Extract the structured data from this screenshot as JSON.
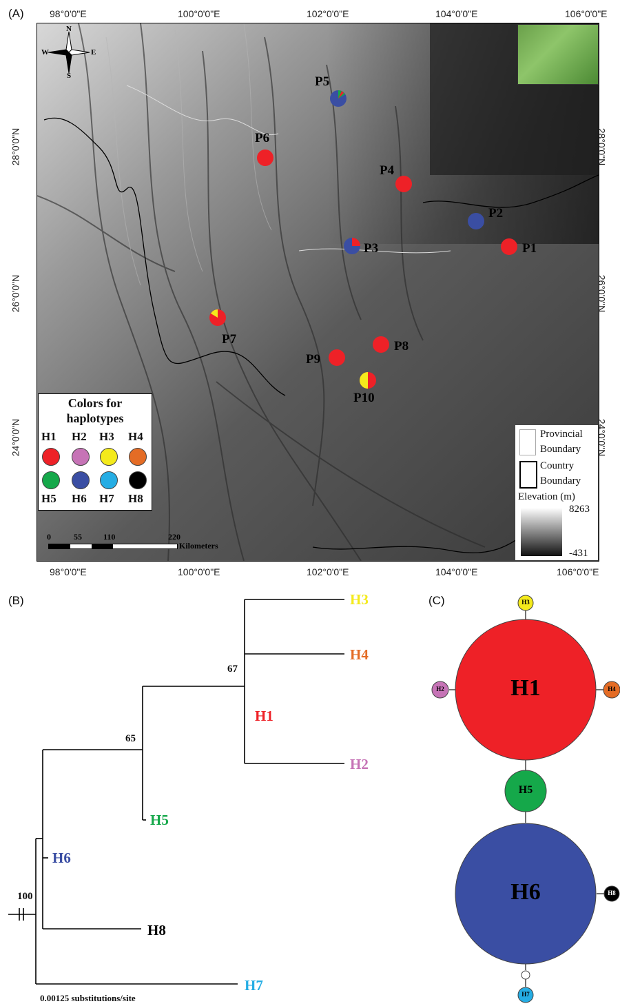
{
  "panels": {
    "a": "(A)",
    "b": "(B)",
    "c": "(C)"
  },
  "map": {
    "lon_labels": [
      "98°0'0\"E",
      "100°0'0\"E",
      "102°0'0\"E",
      "104°0'0\"E",
      "106°0'0\"E"
    ],
    "lat_labels": [
      "28°0'0\"N",
      "26°0'0\"N",
      "24°0'0\"N"
    ],
    "compass": {
      "n": "N",
      "s": "S",
      "e": "E",
      "w": "W"
    },
    "sites": [
      "P1",
      "P2",
      "P3",
      "P4",
      "P5",
      "P6",
      "P7",
      "P8",
      "P9",
      "P10"
    ],
    "legend": {
      "title_line1": "Colors for",
      "title_line2": "haplotypes",
      "haplotypes": [
        {
          "code": "H1",
          "color": "#ee2127"
        },
        {
          "code": "H2",
          "color": "#c673b6"
        },
        {
          "code": "H3",
          "color": "#f4ea1c"
        },
        {
          "code": "H4",
          "color": "#e46c25"
        },
        {
          "code": "H5",
          "color": "#15a84a"
        },
        {
          "code": "H6",
          "color": "#3a4ea3"
        },
        {
          "code": "H7",
          "color": "#25ade4"
        },
        {
          "code": "H8",
          "color": "#000000"
        }
      ]
    },
    "boundary_legend": {
      "provincial": "Provincial",
      "provincial2": "Boundary",
      "country": "Country",
      "country2": "Boundary",
      "elevation_title": "Elevation (m)",
      "elev_max": "8263",
      "elev_min": "-431"
    },
    "scale": {
      "t0": "0",
      "t1": "55",
      "t2": "110",
      "t3": "220",
      "unit": "Kilometers"
    }
  },
  "tree": {
    "tips": [
      "H3",
      "H4",
      "H1",
      "H2",
      "H5",
      "H6",
      "H8",
      "H7"
    ],
    "bootstrap": [
      "67",
      "65",
      "100"
    ],
    "scale_label": "0.00125 substitutions/site"
  },
  "network": {
    "nodes": [
      "H3",
      "H2",
      "H1",
      "H4",
      "H5",
      "H6",
      "H8",
      "H7"
    ]
  }
}
